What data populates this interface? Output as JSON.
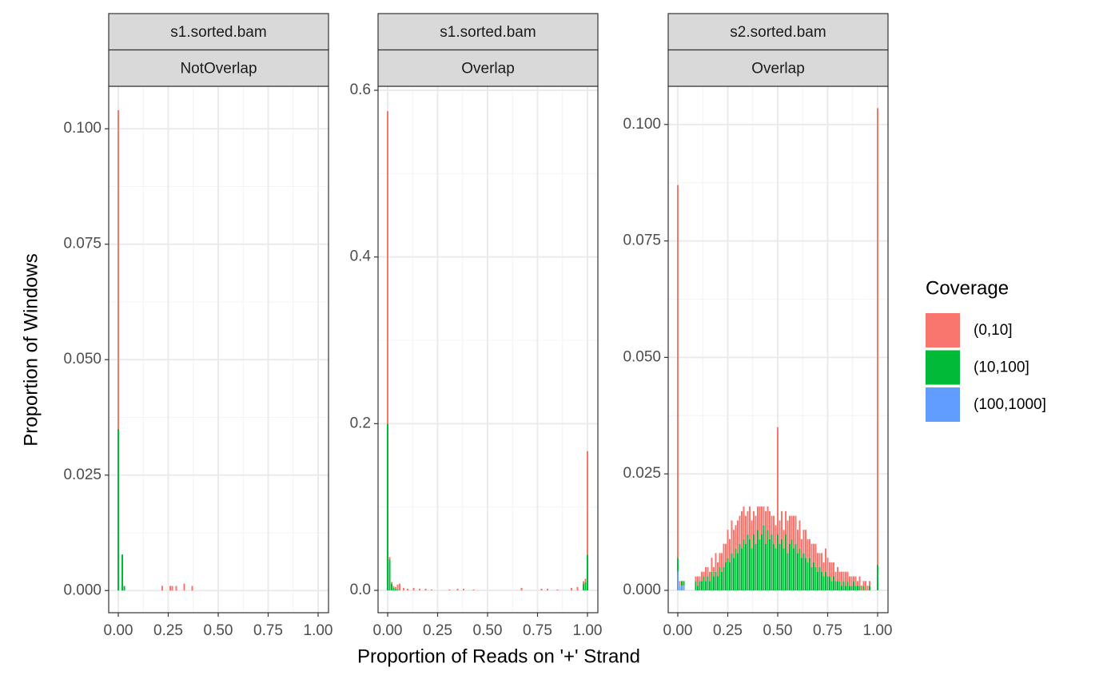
{
  "y_label": "Proportion of Windows",
  "x_label": "Proportion of Reads on '+' Strand",
  "legend_title": "Coverage",
  "chart_data": [
    {
      "type": "bar",
      "stacked": true,
      "strips": [
        "s1.sorted.bam",
        "NotOverlap"
      ],
      "xlim": [
        -0.048,
        1.052
      ],
      "ylim": [
        -0.0048,
        0.1092
      ],
      "grid": true,
      "xticks": [
        {
          "value": 0,
          "label": "0.00"
        },
        0.25,
        {
          "value": 0.5,
          "label": "0.50"
        },
        0.75,
        {
          "value": 1,
          "label": "1.00"
        }
      ],
      "yticks": [
        {
          "value": 0,
          "label": "0.000"
        },
        {
          "value": 0.025,
          "label": "0.025"
        },
        {
          "value": 0.05,
          "label": "0.050"
        },
        {
          "value": 0.075,
          "label": "0.075"
        },
        {
          "value": 0.1,
          "label": "0.100"
        }
      ],
      "x": [
        0,
        0.02,
        0.03,
        0.22,
        0.26,
        0.27,
        0.29,
        0.33,
        0.37
      ],
      "series": [
        {
          "name": "(0,10]",
          "color": "#F8766D",
          "values": [
            0.069,
            0,
            0,
            0.001,
            0.001,
            0.001,
            0.001,
            0.0015,
            0.001
          ]
        },
        {
          "name": "(10,100]",
          "color": "#00BA38",
          "values": [
            0.035,
            0.0078,
            0.001,
            0,
            0,
            0,
            0,
            0,
            0
          ]
        },
        {
          "name": "(100,1000]",
          "color": "#619CFF",
          "values": [
            0,
            0,
            0,
            0,
            0,
            0,
            0,
            0,
            0
          ]
        }
      ]
    },
    {
      "type": "bar",
      "stacked": true,
      "strips": [
        "s1.sorted.bam",
        "Overlap"
      ],
      "xlim": [
        -0.048,
        1.052
      ],
      "ylim": [
        -0.0268,
        0.6048
      ],
      "grid": true,
      "xticks": [
        {
          "value": 0,
          "label": "0.00"
        },
        0.25,
        {
          "value": 0.5,
          "label": "0.50"
        },
        0.75,
        {
          "value": 1,
          "label": "1.00"
        }
      ],
      "yticks": [
        {
          "value": 0,
          "label": "0.0"
        },
        0.2,
        0.4,
        0.6
      ],
      "x": [
        0,
        0.01,
        0.02,
        0.03,
        0.04,
        0.05,
        0.06,
        0.08,
        0.1,
        0.13,
        0.16,
        0.19,
        0.22,
        0.31,
        0.35,
        0.38,
        0.43,
        0.67,
        0.77,
        0.8,
        0.85,
        0.92,
        0.95,
        0.98,
        0.99,
        1
      ],
      "series": [
        {
          "name": "(0,10]",
          "color": "#F8766D",
          "values": [
            0.375,
            0.003,
            0.002,
            0.002,
            0.003,
            0.006,
            0.008,
            0.003,
            0.002,
            0.003,
            0.002,
            0.002,
            0.001,
            0.001,
            0.002,
            0.002,
            0.001,
            0.003,
            0.002,
            0.002,
            0.001,
            0.003,
            0.004,
            0.003,
            0.004,
            0.124
          ]
        },
        {
          "name": "(10,100]",
          "color": "#00BA38",
          "values": [
            0.2,
            0.037,
            0.008,
            0.003,
            0.001,
            0.001,
            0,
            0,
            0,
            0,
            0,
            0,
            0,
            0,
            0,
            0,
            0,
            0,
            0,
            0,
            0,
            0,
            0,
            0.008,
            0.01,
            0.043
          ]
        },
        {
          "name": "(100,1000]",
          "color": "#619CFF",
          "values": [
            0,
            0,
            0,
            0,
            0,
            0,
            0,
            0,
            0,
            0,
            0,
            0,
            0,
            0,
            0,
            0,
            0,
            0,
            0,
            0,
            0,
            0,
            0,
            0,
            0,
            0
          ]
        }
      ]
    },
    {
      "type": "bar",
      "stacked": true,
      "strips": [
        "s2.sorted.bam",
        "Overlap"
      ],
      "xlim": [
        -0.048,
        1.052
      ],
      "ylim": [
        -0.0048,
        0.1082
      ],
      "grid": true,
      "xticks": [
        {
          "value": 0,
          "label": "0.00"
        },
        0.25,
        {
          "value": 0.5,
          "label": "0.50"
        },
        0.75,
        {
          "value": 1,
          "label": "1.00"
        }
      ],
      "yticks": [
        {
          "value": 0,
          "label": "0.000"
        },
        {
          "value": 0.025,
          "label": "0.025"
        },
        {
          "value": 0.05,
          "label": "0.050"
        },
        {
          "value": 0.075,
          "label": "0.075"
        },
        {
          "value": 0.1,
          "label": "0.100"
        }
      ],
      "x": [
        0,
        0.01,
        0.02,
        0.03,
        0.09,
        0.1,
        0.11,
        0.12,
        0.13,
        0.14,
        0.15,
        0.16,
        0.17,
        0.18,
        0.19,
        0.2,
        0.21,
        0.22,
        0.23,
        0.24,
        0.25,
        0.26,
        0.27,
        0.28,
        0.29,
        0.3,
        0.31,
        0.32,
        0.33,
        0.34,
        0.35,
        0.36,
        0.37,
        0.38,
        0.39,
        0.4,
        0.41,
        0.42,
        0.43,
        0.44,
        0.45,
        0.46,
        0.47,
        0.48,
        0.49,
        0.5,
        0.51,
        0.52,
        0.53,
        0.54,
        0.55,
        0.56,
        0.57,
        0.58,
        0.59,
        0.6,
        0.61,
        0.62,
        0.63,
        0.64,
        0.65,
        0.66,
        0.67,
        0.68,
        0.69,
        0.7,
        0.71,
        0.72,
        0.73,
        0.74,
        0.75,
        0.76,
        0.77,
        0.78,
        0.79,
        0.8,
        0.81,
        0.82,
        0.83,
        0.84,
        0.85,
        0.86,
        0.87,
        0.88,
        0.89,
        0.9,
        0.91,
        0.92,
        0.93,
        0.94,
        0.95,
        0.96,
        1
      ],
      "series": [
        {
          "name": "(0,10]",
          "color": "#F8766D",
          "values": [
            0.08,
            0.001,
            0,
            0,
            0.001,
            0.002,
            0.001,
            0.002,
            0.001,
            0.003,
            0.002,
            0.002,
            0.003,
            0.002,
            0.004,
            0.003,
            0.003,
            0.004,
            0.005,
            0.004,
            0.006,
            0.005,
            0.007,
            0.006,
            0.005,
            0.007,
            0.006,
            0.008,
            0.007,
            0.006,
            0.005,
            0.007,
            0.006,
            0.005,
            0.006,
            0.005,
            0.007,
            0.006,
            0.004,
            0.007,
            0.005,
            0.006,
            0.004,
            0.006,
            0.005,
            0.023,
            0.005,
            0.006,
            0.004,
            0.005,
            0.007,
            0.006,
            0.005,
            0.007,
            0.006,
            0.005,
            0.006,
            0.004,
            0.005,
            0.006,
            0.005,
            0.004,
            0.005,
            0.004,
            0.005,
            0.004,
            0.003,
            0.004,
            0.003,
            0.005,
            0.004,
            0.003,
            0.004,
            0.003,
            0.002,
            0.003,
            0.002,
            0.003,
            0.002,
            0.003,
            0.002,
            0.002,
            0.002,
            0.001,
            0.002,
            0.001,
            0.002,
            0.001,
            0.001,
            0.002,
            0.001,
            0.001,
            0.098
          ]
        },
        {
          "name": "(10,100]",
          "color": "#00BA38",
          "values": [
            0.003,
            0,
            0.001,
            0.001,
            0.002,
            0.001,
            0.002,
            0.002,
            0.003,
            0.002,
            0.003,
            0.002,
            0.004,
            0.003,
            0.004,
            0.003,
            0.005,
            0.004,
            0.005,
            0.006,
            0.007,
            0.006,
            0.008,
            0.007,
            0.009,
            0.008,
            0.01,
            0.009,
            0.011,
            0.01,
            0.012,
            0.011,
            0.009,
            0.012,
            0.01,
            0.013,
            0.011,
            0.012,
            0.014,
            0.01,
            0.013,
            0.011,
            0.012,
            0.01,
            0.009,
            0.012,
            0.01,
            0.011,
            0.009,
            0.012,
            0.008,
            0.01,
            0.011,
            0.009,
            0.01,
            0.008,
            0.009,
            0.007,
            0.008,
            0.007,
            0.006,
            0.007,
            0.005,
            0.006,
            0.005,
            0.004,
            0.005,
            0.004,
            0.003,
            0.004,
            0.003,
            0.003,
            0.002,
            0.003,
            0.002,
            0.002,
            0.002,
            0.001,
            0.002,
            0.001,
            0.002,
            0.001,
            0.001,
            0.002,
            0.001,
            0.001,
            0.001,
            0,
            0.001,
            0,
            0,
            0.001,
            0.0055
          ]
        },
        {
          "name": "(100,1000]",
          "color": "#619CFF",
          "values": [
            0.004,
            0.001,
            0.001,
            0.001,
            0,
            0,
            0,
            0,
            0,
            0,
            0,
            0,
            0,
            0,
            0,
            0,
            0,
            0,
            0,
            0,
            0,
            0,
            0,
            0,
            0,
            0,
            0,
            0,
            0,
            0,
            0,
            0,
            0,
            0,
            0,
            0,
            0,
            0,
            0,
            0,
            0,
            0,
            0,
            0,
            0,
            0,
            0,
            0,
            0,
            0,
            0,
            0,
            0,
            0,
            0,
            0,
            0,
            0,
            0,
            0,
            0,
            0,
            0,
            0,
            0,
            0,
            0,
            0,
            0,
            0,
            0,
            0,
            0,
            0,
            0,
            0,
            0,
            0,
            0,
            0,
            0,
            0,
            0,
            0,
            0,
            0,
            0,
            0,
            0,
            0,
            0,
            0,
            0
          ]
        }
      ]
    }
  ]
}
